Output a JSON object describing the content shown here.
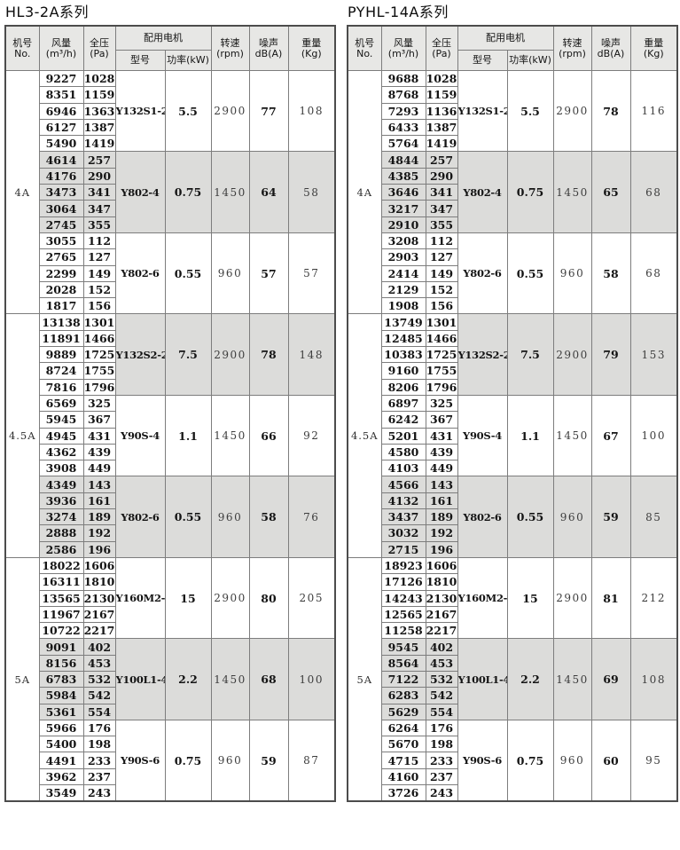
{
  "colors": {
    "shade": "#dcdcda",
    "header_bg": "#e7e7e5",
    "border_inner": "#7d7d7d",
    "border_outer": "#4c4c4c"
  },
  "tables": [
    {
      "title": "HL3-2A系列",
      "header": {
        "no": [
          "机号",
          "No."
        ],
        "airflow": [
          "风量",
          "(m³/h)"
        ],
        "pressure": [
          "全压",
          "(Pa)"
        ],
        "motor_group": "配用电机",
        "model": "型号",
        "power": "功率(kW)",
        "speed": [
          "转速",
          "(rpm)"
        ],
        "noise": [
          "噪声",
          "dB(A)"
        ],
        "weight": [
          "重量",
          "(Kg)"
        ]
      },
      "groups": [
        {
          "no": "4A",
          "blocks": [
            {
              "shade_rows": false,
              "shade_merged": false,
              "rows": [
                [
                  9227,
                  1028
                ],
                [
                  8351,
                  1159
                ],
                [
                  6946,
                  1363
                ],
                [
                  6127,
                  1387
                ],
                [
                  5490,
                  1419
                ]
              ],
              "model": "Y132S1-2",
              "power": "5.5",
              "speed": "2900",
              "noise": "77",
              "weight": "108"
            },
            {
              "shade_rows": true,
              "shade_merged": true,
              "rows": [
                [
                  4614,
                  257
                ],
                [
                  4176,
                  290
                ],
                [
                  3473,
                  341
                ],
                [
                  3064,
                  347
                ],
                [
                  2745,
                  355
                ]
              ],
              "model": "Y802-4",
              "power": "0.75",
              "speed": "1450",
              "noise": "64",
              "weight": "58"
            },
            {
              "shade_rows": false,
              "shade_merged": false,
              "rows": [
                [
                  3055,
                  112
                ],
                [
                  2765,
                  127
                ],
                [
                  2299,
                  149
                ],
                [
                  2028,
                  152
                ],
                [
                  1817,
                  156
                ]
              ],
              "model": "Y802-6",
              "power": "0.55",
              "speed": "960",
              "noise": "57",
              "weight": "57"
            }
          ]
        },
        {
          "no": "4.5A",
          "blocks": [
            {
              "shade_rows": false,
              "shade_merged": true,
              "rows": [
                [
                  13138,
                  1301
                ],
                [
                  11891,
                  1466
                ],
                [
                  9889,
                  1725
                ],
                [
                  8724,
                  1755
                ],
                [
                  7816,
                  1796
                ]
              ],
              "model": "Y132S2-2",
              "power": "7.5",
              "speed": "2900",
              "noise": "78",
              "weight": "148"
            },
            {
              "shade_rows": false,
              "shade_merged": false,
              "rows": [
                [
                  6569,
                  325
                ],
                [
                  5945,
                  367
                ],
                [
                  4945,
                  431
                ],
                [
                  4362,
                  439
                ],
                [
                  3908,
                  449
                ]
              ],
              "model": "Y90S-4",
              "power": "1.1",
              "speed": "1450",
              "noise": "66",
              "weight": "92"
            },
            {
              "shade_rows": true,
              "shade_merged": true,
              "rows": [
                [
                  4349,
                  143
                ],
                [
                  3936,
                  161
                ],
                [
                  3274,
                  189
                ],
                [
                  2888,
                  192
                ],
                [
                  2586,
                  196
                ]
              ],
              "model": "Y802-6",
              "power": "0.55",
              "speed": "960",
              "noise": "58",
              "weight": "76"
            }
          ]
        },
        {
          "no": "5A",
          "blocks": [
            {
              "shade_rows": false,
              "shade_merged": false,
              "rows": [
                [
                  18022,
                  1606
                ],
                [
                  16311,
                  1810
                ],
                [
                  13565,
                  2130
                ],
                [
                  11967,
                  2167
                ],
                [
                  10722,
                  2217
                ]
              ],
              "model": "Y160M2-2",
              "power": "15",
              "speed": "2900",
              "noise": "80",
              "weight": "205"
            },
            {
              "shade_rows": true,
              "shade_merged": true,
              "rows": [
                [
                  9091,
                  402
                ],
                [
                  8156,
                  453
                ],
                [
                  6783,
                  532
                ],
                [
                  5984,
                  542
                ],
                [
                  5361,
                  554
                ]
              ],
              "model": "Y100L1-4",
              "power": "2.2",
              "speed": "1450",
              "noise": "68",
              "weight": "100"
            },
            {
              "shade_rows": false,
              "shade_merged": false,
              "rows": [
                [
                  5966,
                  176
                ],
                [
                  5400,
                  198
                ],
                [
                  4491,
                  233
                ],
                [
                  3962,
                  237
                ],
                [
                  3549,
                  243
                ]
              ],
              "model": "Y90S-6",
              "power": "0.75",
              "speed": "960",
              "noise": "59",
              "weight": "87"
            }
          ]
        }
      ]
    },
    {
      "title": "PYHL-14A系列",
      "header": {
        "no": [
          "机号",
          "No."
        ],
        "airflow": [
          "风量",
          "(m³/h)"
        ],
        "pressure": [
          "全压",
          "(Pa)"
        ],
        "motor_group": "配用电机",
        "model": "型号",
        "power": "功率(kW)",
        "speed": [
          "转速",
          "(rpm)"
        ],
        "noise": [
          "噪声",
          "dB(A)"
        ],
        "weight": [
          "重量",
          "(Kg)"
        ]
      },
      "groups": [
        {
          "no": "4A",
          "blocks": [
            {
              "shade_rows": false,
              "shade_merged": false,
              "rows": [
                [
                  9688,
                  1028
                ],
                [
                  8768,
                  1159
                ],
                [
                  7293,
                  1136
                ],
                [
                  6433,
                  1387
                ],
                [
                  5764,
                  1419
                ]
              ],
              "model": "Y132S1-2",
              "power": "5.5",
              "speed": "2900",
              "noise": "78",
              "weight": "116"
            },
            {
              "shade_rows": true,
              "shade_merged": true,
              "rows": [
                [
                  4844,
                  257
                ],
                [
                  4385,
                  290
                ],
                [
                  3646,
                  341
                ],
                [
                  3217,
                  347
                ],
                [
                  2910,
                  355
                ]
              ],
              "model": "Y802-4",
              "power": "0.75",
              "speed": "1450",
              "noise": "65",
              "weight": "68"
            },
            {
              "shade_rows": false,
              "shade_merged": false,
              "rows": [
                [
                  3208,
                  112
                ],
                [
                  2903,
                  127
                ],
                [
                  2414,
                  149
                ],
                [
                  2129,
                  152
                ],
                [
                  1908,
                  156
                ]
              ],
              "model": "Y802-6",
              "power": "0.55",
              "speed": "960",
              "noise": "58",
              "weight": "68"
            }
          ]
        },
        {
          "no": "4.5A",
          "blocks": [
            {
              "shade_rows": false,
              "shade_merged": true,
              "rows": [
                [
                  13749,
                  1301
                ],
                [
                  12485,
                  1466
                ],
                [
                  10383,
                  1725
                ],
                [
                  9160,
                  1755
                ],
                [
                  8206,
                  1796
                ]
              ],
              "model": "Y132S2-2",
              "power": "7.5",
              "speed": "2900",
              "noise": "79",
              "weight": "153"
            },
            {
              "shade_rows": false,
              "shade_merged": false,
              "rows": [
                [
                  6897,
                  325
                ],
                [
                  6242,
                  367
                ],
                [
                  5201,
                  431
                ],
                [
                  4580,
                  439
                ],
                [
                  4103,
                  449
                ]
              ],
              "model": "Y90S-4",
              "power": "1.1",
              "speed": "1450",
              "noise": "67",
              "weight": "100"
            },
            {
              "shade_rows": true,
              "shade_merged": true,
              "rows": [
                [
                  4566,
                  143
                ],
                [
                  4132,
                  161
                ],
                [
                  3437,
                  189
                ],
                [
                  3032,
                  192
                ],
                [
                  2715,
                  196
                ]
              ],
              "model": "Y802-6",
              "power": "0.55",
              "speed": "960",
              "noise": "59",
              "weight": "85"
            }
          ]
        },
        {
          "no": "5A",
          "blocks": [
            {
              "shade_rows": false,
              "shade_merged": false,
              "rows": [
                [
                  18923,
                  1606
                ],
                [
                  17126,
                  1810
                ],
                [
                  14243,
                  2130
                ],
                [
                  12565,
                  2167
                ],
                [
                  11258,
                  2217
                ]
              ],
              "model": "Y160M2-2",
              "power": "15",
              "speed": "2900",
              "noise": "81",
              "weight": "212"
            },
            {
              "shade_rows": true,
              "shade_merged": true,
              "rows": [
                [
                  9545,
                  402
                ],
                [
                  8564,
                  453
                ],
                [
                  7122,
                  532
                ],
                [
                  6283,
                  542
                ],
                [
                  5629,
                  554
                ]
              ],
              "model": "Y100L1-4",
              "power": "2.2",
              "speed": "1450",
              "noise": "69",
              "weight": "108"
            },
            {
              "shade_rows": false,
              "shade_merged": false,
              "rows": [
                [
                  6264,
                  176
                ],
                [
                  5670,
                  198
                ],
                [
                  4715,
                  233
                ],
                [
                  4160,
                  237
                ],
                [
                  3726,
                  243
                ]
              ],
              "model": "Y90S-6",
              "power": "0.75",
              "speed": "960",
              "noise": "60",
              "weight": "95"
            }
          ]
        }
      ]
    }
  ]
}
